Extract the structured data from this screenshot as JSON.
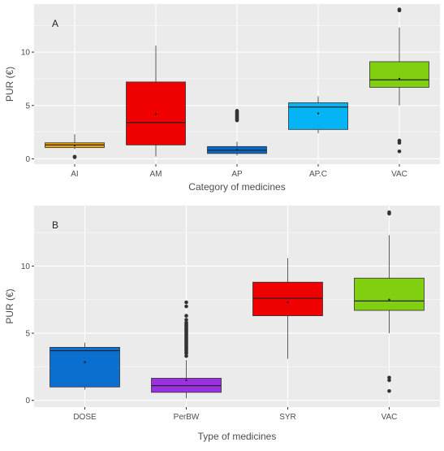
{
  "chart_data": [
    {
      "type": "box",
      "panel_label": "A",
      "xlabel": "Category of medicines",
      "ylabel": "PUR (€)",
      "ylim": [
        -0.5,
        14.5
      ],
      "yticks": [
        0,
        5,
        10
      ],
      "grid": true,
      "categories": [
        "AI",
        "AM",
        "AP",
        "AP.C",
        "VAC"
      ],
      "boxes": [
        {
          "category": "AI",
          "color": "#f0a800",
          "whisker_low": 0.9,
          "q1": 1.05,
          "median": 1.3,
          "q3": 1.5,
          "whisker_high": 2.3,
          "mean": 1.25,
          "outliers": [
            0.2,
            0.15
          ]
        },
        {
          "category": "AM",
          "color": "#ee0000",
          "whisker_low": 0.2,
          "q1": 1.3,
          "median": 3.4,
          "q3": 7.2,
          "whisker_high": 10.6,
          "mean": 4.2,
          "outliers": []
        },
        {
          "category": "AP",
          "color": "#0868c8",
          "whisker_low": 0.3,
          "q1": 0.5,
          "median": 0.8,
          "q3": 1.15,
          "whisker_high": 1.6,
          "mean": 0.85,
          "outliers": [
            3.6,
            3.7,
            3.8,
            3.9,
            4.0,
            4.1,
            4.2,
            4.3,
            4.4,
            4.5
          ]
        },
        {
          "category": "AP.C",
          "color": "#05b4f4",
          "whisker_low": 2.4,
          "q1": 2.75,
          "median": 4.85,
          "q3": 5.25,
          "whisker_high": 5.85,
          "mean": 4.25,
          "outliers": []
        },
        {
          "category": "VAC",
          "color": "#80d010",
          "whisker_low": 5.0,
          "q1": 6.7,
          "median": 7.4,
          "q3": 9.1,
          "whisker_high": 12.3,
          "mean": 7.5,
          "outliers": [
            13.9,
            14.0,
            1.7,
            1.5,
            0.7
          ]
        }
      ]
    },
    {
      "type": "box",
      "panel_label": "B",
      "xlabel": "Type of medicines",
      "ylabel": "PUR (€)",
      "ylim": [
        -0.5,
        14.5
      ],
      "yticks": [
        0,
        5,
        10
      ],
      "grid": true,
      "categories": [
        "DOSE",
        "PerBW",
        "SYR",
        "VAC"
      ],
      "boxes": [
        {
          "category": "DOSE",
          "color": "#0a6fce",
          "whisker_low": 0.8,
          "q1": 1.0,
          "median": 3.7,
          "q3": 3.95,
          "whisker_high": 4.3,
          "mean": 2.85,
          "outliers": []
        },
        {
          "category": "PerBW",
          "color": "#9b30e0",
          "whisker_low": 0.15,
          "q1": 0.6,
          "median": 1.1,
          "q3": 1.65,
          "whisker_high": 3.0,
          "mean": 1.5,
          "outliers": [
            3.3,
            3.5,
            3.6,
            3.7,
            3.8,
            3.9,
            4.0,
            4.1,
            4.2,
            4.3,
            4.4,
            4.5,
            4.6,
            4.7,
            4.8,
            4.9,
            5.0,
            5.1,
            5.2,
            5.3,
            5.4,
            5.5,
            5.6,
            5.7,
            5.8,
            6.0,
            6.3,
            7.0,
            7.3
          ]
        },
        {
          "category": "SYR",
          "color": "#ee0000",
          "whisker_low": 3.1,
          "q1": 6.3,
          "median": 7.6,
          "q3": 8.8,
          "whisker_high": 10.6,
          "mean": 7.3,
          "outliers": []
        },
        {
          "category": "VAC",
          "color": "#80d010",
          "whisker_low": 5.0,
          "q1": 6.7,
          "median": 7.4,
          "q3": 9.1,
          "whisker_high": 12.3,
          "mean": 7.5,
          "outliers": [
            13.9,
            14.0,
            1.7,
            1.5,
            0.7
          ]
        }
      ]
    }
  ],
  "colors": {
    "panel_background": "#ebebeb",
    "gridline": "#ffffff",
    "outlier": "#333333",
    "axis_text": "#4d4d4d",
    "title_text": "#222222"
  }
}
